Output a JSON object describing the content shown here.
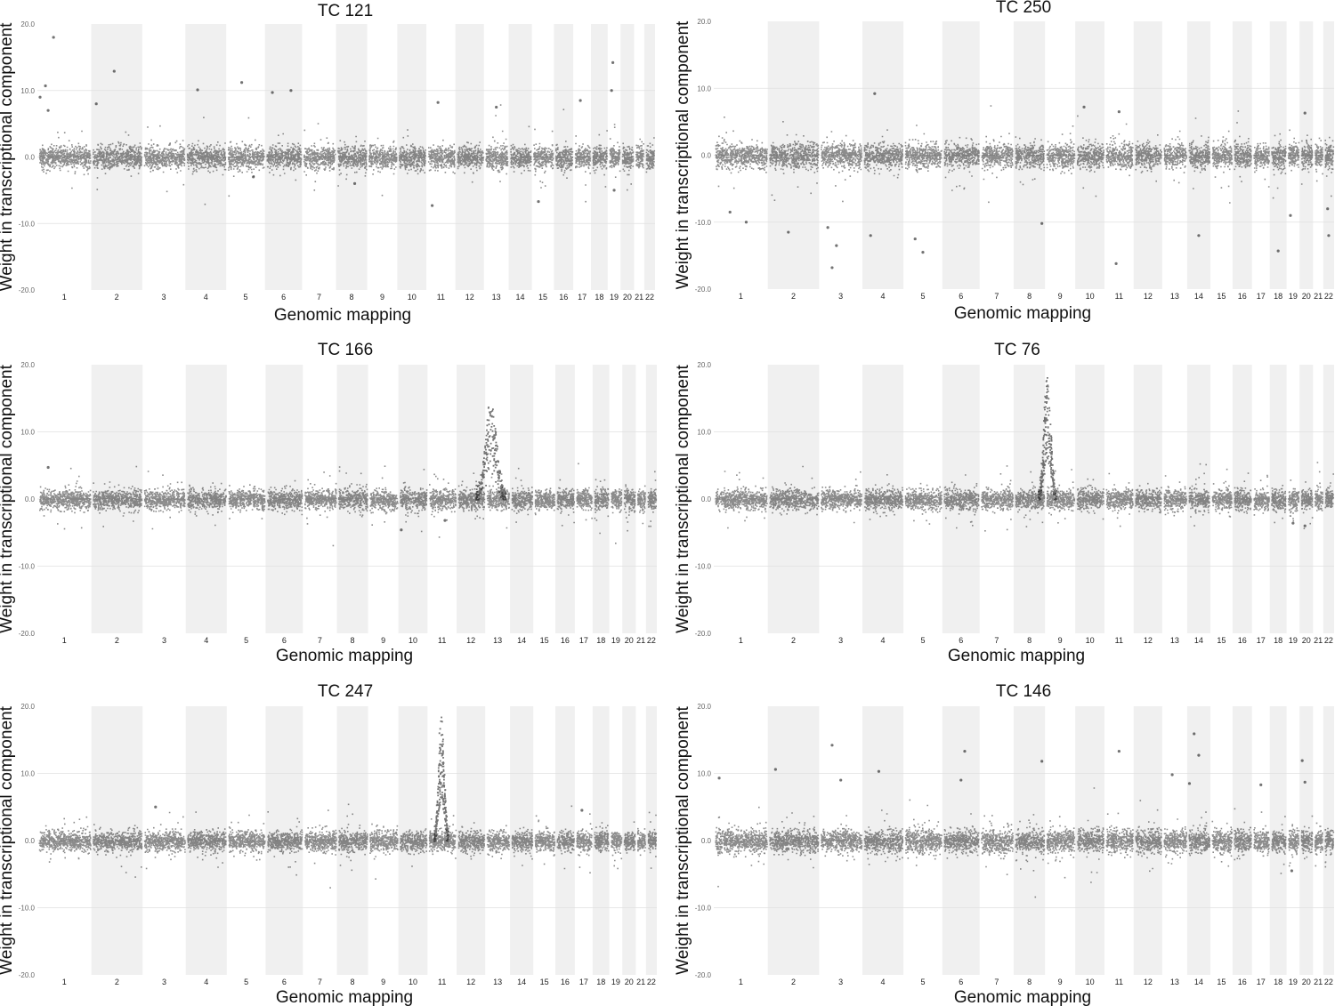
{
  "chart_data": [
    {
      "type": "scatter",
      "title": "TC 121",
      "xlabel": "Genomic mapping",
      "ylabel": "Weight in transcriptional component",
      "ylim": [
        -20,
        20
      ],
      "yticks": [
        "20.0",
        "10.0",
        "0.0",
        "-10.0",
        "-20.0"
      ],
      "grid": true,
      "chromosomes": [
        "1",
        "2",
        "3",
        "4",
        "5",
        "6",
        "7",
        "8",
        "9",
        "10",
        "11",
        "12",
        "13",
        "14",
        "15",
        "16",
        "17",
        "18",
        "19",
        "20",
        "21",
        "22"
      ],
      "baseline_spread": 1.5,
      "peak": null,
      "outliers": [
        {
          "chr": "1",
          "pos": 0.3,
          "y": 18.0
        },
        {
          "chr": "1",
          "pos": 0.15,
          "y": 10.7
        },
        {
          "chr": "1",
          "pos": 0.05,
          "y": 9.0
        },
        {
          "chr": "1",
          "pos": 0.2,
          "y": 7.0
        },
        {
          "chr": "2",
          "pos": 0.45,
          "y": 12.9
        },
        {
          "chr": "2",
          "pos": 0.1,
          "y": 8.0
        },
        {
          "chr": "4",
          "pos": 0.3,
          "y": 10.1
        },
        {
          "chr": "5",
          "pos": 0.4,
          "y": 11.2
        },
        {
          "chr": "5",
          "pos": 0.7,
          "y": -3.0
        },
        {
          "chr": "6",
          "pos": 0.2,
          "y": 9.7
        },
        {
          "chr": "6",
          "pos": 0.7,
          "y": 10.0
        },
        {
          "chr": "8",
          "pos": 0.6,
          "y": -4.0
        },
        {
          "chr": "11",
          "pos": 0.2,
          "y": -7.3
        },
        {
          "chr": "11",
          "pos": 0.4,
          "y": 8.2
        },
        {
          "chr": "13",
          "pos": 0.5,
          "y": 7.5
        },
        {
          "chr": "15",
          "pos": 0.3,
          "y": -6.7
        },
        {
          "chr": "17",
          "pos": 0.4,
          "y": 8.5
        },
        {
          "chr": "19",
          "pos": 0.4,
          "y": 14.2
        },
        {
          "chr": "19",
          "pos": 0.3,
          "y": 10.0
        },
        {
          "chr": "19",
          "pos": 0.5,
          "y": -5.0
        }
      ]
    },
    {
      "type": "scatter",
      "title": "TC 250",
      "xlabel": "Genomic mapping",
      "ylabel": "Weight in transcriptional component",
      "ylim": [
        -20,
        20
      ],
      "yticks": [
        "20.0",
        "10.0",
        "0.0",
        "-10.0",
        "-20.0"
      ],
      "grid": true,
      "chromosomes": [
        "1",
        "2",
        "3",
        "4",
        "5",
        "6",
        "7",
        "8",
        "9",
        "10",
        "11",
        "12",
        "13",
        "14",
        "15",
        "16",
        "17",
        "18",
        "19",
        "20",
        "21",
        "22"
      ],
      "baseline_spread": 1.6,
      "peak": null,
      "outliers": [
        {
          "chr": "1",
          "pos": 0.6,
          "y": -10.0
        },
        {
          "chr": "1",
          "pos": 0.3,
          "y": -8.5
        },
        {
          "chr": "2",
          "pos": 0.4,
          "y": -11.5
        },
        {
          "chr": "3",
          "pos": 0.3,
          "y": -16.8
        },
        {
          "chr": "3",
          "pos": 0.4,
          "y": -13.5
        },
        {
          "chr": "3",
          "pos": 0.2,
          "y": -10.8
        },
        {
          "chr": "4",
          "pos": 0.3,
          "y": 9.2
        },
        {
          "chr": "4",
          "pos": 0.2,
          "y": -12.0
        },
        {
          "chr": "5",
          "pos": 0.3,
          "y": -12.5
        },
        {
          "chr": "5",
          "pos": 0.5,
          "y": -14.5
        },
        {
          "chr": "8",
          "pos": 0.9,
          "y": -10.2
        },
        {
          "chr": "10",
          "pos": 0.3,
          "y": 7.2
        },
        {
          "chr": "11",
          "pos": 0.4,
          "y": -16.2
        },
        {
          "chr": "11",
          "pos": 0.5,
          "y": 6.5
        },
        {
          "chr": "14",
          "pos": 0.5,
          "y": -12.0
        },
        {
          "chr": "18",
          "pos": 0.5,
          "y": -14.3
        },
        {
          "chr": "19",
          "pos": 0.3,
          "y": -9.0
        },
        {
          "chr": "20",
          "pos": 0.4,
          "y": 6.3
        },
        {
          "chr": "22",
          "pos": 0.5,
          "y": -12.0
        },
        {
          "chr": "22",
          "pos": 0.4,
          "y": -8.0
        }
      ]
    },
    {
      "type": "scatter",
      "title": "TC 166",
      "xlabel": "Genomic mapping",
      "ylabel": "Weight in transcriptional component",
      "ylim": [
        -20,
        20
      ],
      "yticks": [
        "20.0",
        "10.0",
        "0.0",
        "-10.0",
        "-20.0"
      ],
      "grid": true,
      "chromosomes": [
        "1",
        "2",
        "3",
        "4",
        "5",
        "6",
        "7",
        "8",
        "9",
        "10",
        "11",
        "12",
        "13",
        "14",
        "15",
        "16",
        "17",
        "18",
        "19",
        "20",
        "21",
        "22"
      ],
      "baseline_spread": 1.3,
      "peak": {
        "chr": "13",
        "pos": 0.2,
        "max": 14.0,
        "width": 0.9
      },
      "outliers": [
        {
          "chr": "1",
          "pos": 0.2,
          "y": 4.7
        },
        {
          "chr": "10",
          "pos": 0.1,
          "y": -4.6
        },
        {
          "chr": "11",
          "pos": 0.6,
          "y": -3.2
        }
      ]
    },
    {
      "type": "scatter",
      "title": "TC 76",
      "xlabel": "Genomic mapping",
      "ylabel": "Weight in transcriptional component",
      "ylim": [
        -20,
        20
      ],
      "yticks": [
        "20.0",
        "10.0",
        "0.0",
        "-10.0",
        "-20.0"
      ],
      "grid": true,
      "chromosomes": [
        "1",
        "2",
        "3",
        "4",
        "5",
        "6",
        "7",
        "8",
        "9",
        "10",
        "11",
        "12",
        "13",
        "14",
        "15",
        "16",
        "17",
        "18",
        "19",
        "20",
        "21",
        "22"
      ],
      "baseline_spread": 1.3,
      "peak": {
        "chr": "9",
        "pos": 0.05,
        "max": 18.0,
        "width": 0.35
      },
      "outliers": [
        {
          "chr": "19",
          "pos": 0.5,
          "y": -3.6
        },
        {
          "chr": "20",
          "pos": 0.4,
          "y": -4.0
        }
      ]
    },
    {
      "type": "scatter",
      "title": "TC 247",
      "xlabel": "Genomic mapping",
      "ylabel": "Weight in transcriptional component",
      "ylim": [
        -20,
        20
      ],
      "yticks": [
        "20.0",
        "10.0",
        "0.0",
        "-10.0",
        "-20.0"
      ],
      "grid": true,
      "chromosomes": [
        "1",
        "2",
        "3",
        "4",
        "5",
        "6",
        "7",
        "8",
        "9",
        "10",
        "11",
        "12",
        "13",
        "14",
        "15",
        "16",
        "17",
        "18",
        "19",
        "20",
        "21",
        "22"
      ],
      "baseline_spread": 1.3,
      "peak": {
        "chr": "11",
        "pos": 0.45,
        "max": 18.5,
        "width": 0.25
      },
      "outliers": [
        {
          "chr": "3",
          "pos": 0.3,
          "y": 5.0
        },
        {
          "chr": "17",
          "pos": 0.4,
          "y": 4.5
        }
      ]
    },
    {
      "type": "scatter",
      "title": "TC 146",
      "xlabel": "Genomic mapping",
      "ylabel": "Weight in transcriptional component",
      "ylim": [
        -20,
        20
      ],
      "yticks": [
        "20.0",
        "10.0",
        "0.0",
        "-10.0",
        "-20.0"
      ],
      "grid": true,
      "chromosomes": [
        "1",
        "2",
        "3",
        "4",
        "5",
        "6",
        "7",
        "8",
        "9",
        "10",
        "11",
        "12",
        "13",
        "14",
        "15",
        "16",
        "17",
        "18",
        "19",
        "20",
        "21",
        "22"
      ],
      "baseline_spread": 1.5,
      "peak": null,
      "outliers": [
        {
          "chr": "1",
          "pos": 0.1,
          "y": 9.3
        },
        {
          "chr": "2",
          "pos": 0.15,
          "y": 10.6
        },
        {
          "chr": "3",
          "pos": 0.3,
          "y": 14.2
        },
        {
          "chr": "3",
          "pos": 0.5,
          "y": 9.0
        },
        {
          "chr": "4",
          "pos": 0.4,
          "y": 10.3
        },
        {
          "chr": "6",
          "pos": 0.6,
          "y": 13.3
        },
        {
          "chr": "6",
          "pos": 0.5,
          "y": 9.0
        },
        {
          "chr": "8",
          "pos": 0.9,
          "y": 11.8
        },
        {
          "chr": "11",
          "pos": 0.5,
          "y": 13.3
        },
        {
          "chr": "13",
          "pos": 0.4,
          "y": 9.8
        },
        {
          "chr": "14",
          "pos": 0.3,
          "y": 15.9
        },
        {
          "chr": "14",
          "pos": 0.5,
          "y": 12.7
        },
        {
          "chr": "14",
          "pos": 0.1,
          "y": 8.5
        },
        {
          "chr": "17",
          "pos": 0.5,
          "y": 8.3
        },
        {
          "chr": "20",
          "pos": 0.2,
          "y": 11.9
        },
        {
          "chr": "20",
          "pos": 0.4,
          "y": 8.7
        },
        {
          "chr": "19",
          "pos": 0.4,
          "y": -4.5
        }
      ]
    }
  ]
}
